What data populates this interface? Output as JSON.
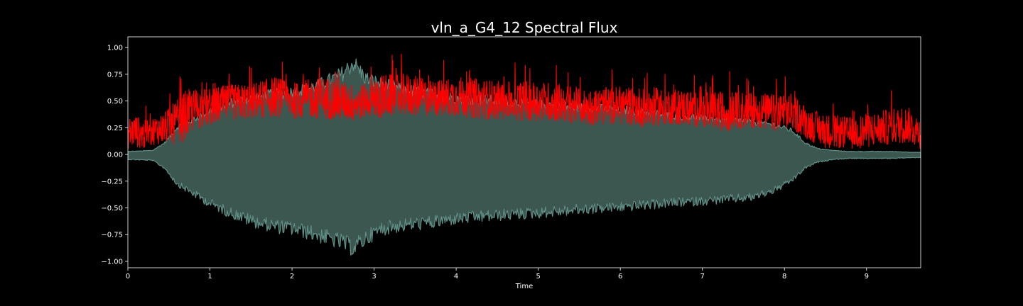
{
  "chart_data": {
    "type": "area",
    "title": "vln_a_G4_12 Spectral Flux",
    "xlabel": "Time",
    "ylabel": "",
    "xlim": [
      0,
      9.66
    ],
    "ylim": [
      -1.06,
      1.1
    ],
    "x_ticks": [
      0,
      1,
      2,
      3,
      4,
      5,
      6,
      7,
      8,
      9
    ],
    "x_tick_labels": [
      "0",
      "1",
      "2",
      "3",
      "4",
      "5",
      "6",
      "7",
      "8",
      "9"
    ],
    "y_ticks": [
      1.0,
      0.75,
      0.5,
      0.25,
      0.0,
      -0.25,
      -0.5,
      -0.75,
      -1.0
    ],
    "y_tick_labels": [
      "1.00",
      "0.75",
      "0.50",
      "0.25",
      "0.00",
      "−0.25",
      "−0.50",
      "−0.75",
      "−1.00"
    ],
    "grid": false,
    "background": "#000000",
    "series": [
      {
        "kind": "waveform-envelope",
        "color": "#5f8f86",
        "fill_color": "#3c5650",
        "x": [
          0,
          0.3,
          0.45,
          0.6,
          0.8,
          1.0,
          1.2,
          1.5,
          1.8,
          2.0,
          2.3,
          2.6,
          2.75,
          2.9,
          3.1,
          3.4,
          3.7,
          4.0,
          4.3,
          4.6,
          5.0,
          5.3,
          5.6,
          6.0,
          6.3,
          6.6,
          7.0,
          7.3,
          7.6,
          7.9,
          8.1,
          8.25,
          8.4,
          8.6,
          8.8,
          9.0,
          9.3,
          9.66
        ],
        "upper": [
          0.03,
          0.04,
          0.12,
          0.28,
          0.36,
          0.45,
          0.52,
          0.58,
          0.62,
          0.64,
          0.7,
          0.82,
          0.94,
          0.78,
          0.72,
          0.66,
          0.62,
          0.58,
          0.56,
          0.55,
          0.52,
          0.5,
          0.48,
          0.46,
          0.44,
          0.4,
          0.38,
          0.36,
          0.34,
          0.3,
          0.24,
          0.12,
          0.06,
          0.04,
          0.03,
          0.03,
          0.03,
          0.02
        ],
        "lower": [
          -0.05,
          -0.06,
          -0.14,
          -0.3,
          -0.4,
          -0.5,
          -0.58,
          -0.68,
          -0.74,
          -0.76,
          -0.82,
          -0.9,
          -0.96,
          -0.86,
          -0.76,
          -0.72,
          -0.7,
          -0.66,
          -0.64,
          -0.62,
          -0.6,
          -0.58,
          -0.56,
          -0.54,
          -0.52,
          -0.5,
          -0.48,
          -0.46,
          -0.44,
          -0.36,
          -0.26,
          -0.14,
          -0.08,
          -0.05,
          -0.04,
          -0.04,
          -0.04,
          -0.03
        ]
      },
      {
        "kind": "spectral-flux",
        "color": "#ff0000",
        "x": [
          0,
          0.1,
          0.2,
          0.3,
          0.45,
          0.6,
          0.7,
          0.8,
          1.0,
          1.2,
          1.5,
          1.8,
          2.0,
          2.2,
          2.4,
          2.6,
          2.75,
          2.9,
          3.1,
          3.4,
          3.7,
          4.0,
          4.3,
          4.6,
          5.0,
          5.3,
          5.6,
          6.0,
          6.3,
          6.6,
          7.0,
          7.3,
          7.6,
          7.9,
          8.1,
          8.3,
          8.5,
          8.8,
          9.0,
          9.3,
          9.5,
          9.66
        ],
        "center": [
          0.2,
          0.22,
          0.18,
          0.22,
          0.25,
          0.3,
          0.36,
          0.42,
          0.44,
          0.48,
          0.5,
          0.54,
          0.5,
          0.52,
          0.53,
          0.5,
          0.48,
          0.5,
          0.54,
          0.56,
          0.52,
          0.54,
          0.52,
          0.5,
          0.5,
          0.48,
          0.44,
          0.46,
          0.44,
          0.45,
          0.42,
          0.4,
          0.42,
          0.38,
          0.4,
          0.28,
          0.22,
          0.2,
          0.22,
          0.26,
          0.28,
          0.2
        ],
        "spread": [
          0.3,
          0.3,
          0.28,
          0.26,
          0.3,
          0.42,
          0.48,
          0.4,
          0.36,
          0.34,
          0.34,
          0.38,
          0.34,
          0.36,
          0.4,
          0.38,
          0.36,
          0.32,
          0.42,
          0.4,
          0.34,
          0.38,
          0.38,
          0.36,
          0.38,
          0.36,
          0.34,
          0.36,
          0.38,
          0.34,
          0.34,
          0.38,
          0.34,
          0.36,
          0.34,
          0.3,
          0.32,
          0.3,
          0.32,
          0.34,
          0.34,
          0.3
        ]
      }
    ]
  }
}
